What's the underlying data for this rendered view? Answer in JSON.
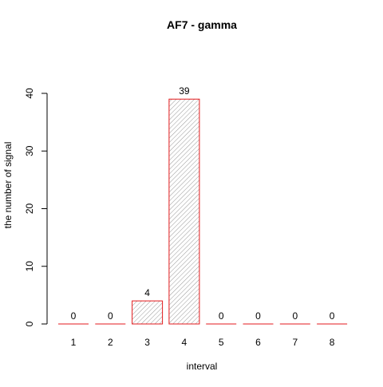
{
  "chart_data": {
    "type": "bar",
    "title": "AF7  -  gamma",
    "xlabel": "interval",
    "ylabel": "the number of signal",
    "categories": [
      "1",
      "2",
      "3",
      "4",
      "5",
      "6",
      "7",
      "8"
    ],
    "values": [
      0,
      0,
      4,
      39,
      0,
      0,
      0,
      0
    ],
    "data_labels": [
      "0",
      "0",
      "4",
      "39",
      "0",
      "0",
      "0",
      "0"
    ],
    "ylim": [
      0,
      40
    ],
    "yticks": [
      "0",
      "10",
      "20",
      "30",
      "40"
    ],
    "grid": false,
    "legend": "none",
    "bar_border_color": "#e31a1c",
    "bar_hatch_color": "#7f7f7f",
    "bar_fill": "hatched"
  }
}
